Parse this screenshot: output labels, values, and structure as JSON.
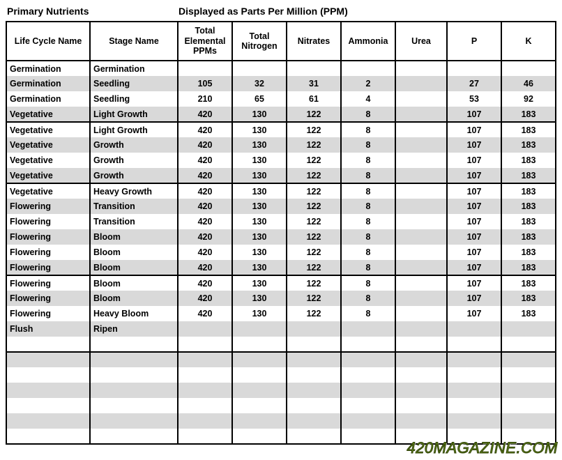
{
  "titles": {
    "left": "Primary Nutrients",
    "right": "Displayed as Parts Per Million (PPM)"
  },
  "columns": [
    "Life Cycle Name",
    "Stage Name",
    "Total Elemental PPMs",
    "Total Nitrogen",
    "Nitrates",
    "Ammonia",
    "Urea",
    "P",
    "K"
  ],
  "rows": [
    {
      "life": "Germination",
      "stage": "Germination",
      "vals": [
        "",
        "",
        "",
        "",
        "",
        "",
        ""
      ],
      "divider": true
    },
    {
      "life": "Germination",
      "stage": "Seedling",
      "vals": [
        "105",
        "32",
        "31",
        "2",
        "",
        "27",
        "46"
      ]
    },
    {
      "life": "Germination",
      "stage": "Seedling",
      "vals": [
        "210",
        "65",
        "61",
        "4",
        "",
        "53",
        "92"
      ]
    },
    {
      "life": "Vegetative",
      "stage": "Light Growth",
      "vals": [
        "420",
        "130",
        "122",
        "8",
        "",
        "107",
        "183"
      ]
    },
    {
      "life": "Vegetative",
      "stage": "Light Growth",
      "vals": [
        "420",
        "130",
        "122",
        "8",
        "",
        "107",
        "183"
      ],
      "divider": true
    },
    {
      "life": "Vegetative",
      "stage": "Growth",
      "vals": [
        "420",
        "130",
        "122",
        "8",
        "",
        "107",
        "183"
      ]
    },
    {
      "life": "Vegetative",
      "stage": "Growth",
      "vals": [
        "420",
        "130",
        "122",
        "8",
        "",
        "107",
        "183"
      ]
    },
    {
      "life": "Vegetative",
      "stage": "Growth",
      "vals": [
        "420",
        "130",
        "122",
        "8",
        "",
        "107",
        "183"
      ]
    },
    {
      "life": "Vegetative",
      "stage": "Heavy Growth",
      "vals": [
        "420",
        "130",
        "122",
        "8",
        "",
        "107",
        "183"
      ],
      "divider": true
    },
    {
      "life": "Flowering",
      "stage": "Transition",
      "vals": [
        "420",
        "130",
        "122",
        "8",
        "",
        "107",
        "183"
      ]
    },
    {
      "life": "Flowering",
      "stage": "Transition",
      "vals": [
        "420",
        "130",
        "122",
        "8",
        "",
        "107",
        "183"
      ]
    },
    {
      "life": "Flowering",
      "stage": "Bloom",
      "vals": [
        "420",
        "130",
        "122",
        "8",
        "",
        "107",
        "183"
      ]
    },
    {
      "life": "Flowering",
      "stage": "Bloom",
      "vals": [
        "420",
        "130",
        "122",
        "8",
        "",
        "107",
        "183"
      ]
    },
    {
      "life": "Flowering",
      "stage": "Bloom",
      "vals": [
        "420",
        "130",
        "122",
        "8",
        "",
        "107",
        "183"
      ]
    },
    {
      "life": "Flowering",
      "stage": "Bloom",
      "vals": [
        "420",
        "130",
        "122",
        "8",
        "",
        "107",
        "183"
      ],
      "divider": true
    },
    {
      "life": "Flowering",
      "stage": "Bloom",
      "vals": [
        "420",
        "130",
        "122",
        "8",
        "",
        "107",
        "183"
      ]
    },
    {
      "life": "Flowering",
      "stage": "Heavy Bloom",
      "vals": [
        "420",
        "130",
        "122",
        "8",
        "",
        "107",
        "183"
      ]
    },
    {
      "life": "Flush",
      "stage": "Ripen",
      "vals": [
        "",
        "",
        "",
        "",
        "",
        "",
        ""
      ]
    },
    {
      "life": "",
      "stage": "",
      "vals": [
        "",
        "",
        "",
        "",
        "",
        "",
        ""
      ]
    },
    {
      "life": "",
      "stage": "",
      "vals": [
        "",
        "",
        "",
        "",
        "",
        "",
        ""
      ],
      "divider": true
    },
    {
      "life": "",
      "stage": "",
      "vals": [
        "",
        "",
        "",
        "",
        "",
        "",
        ""
      ]
    },
    {
      "life": "",
      "stage": "",
      "vals": [
        "",
        "",
        "",
        "",
        "",
        "",
        ""
      ]
    },
    {
      "life": "",
      "stage": "",
      "vals": [
        "",
        "",
        "",
        "",
        "",
        "",
        ""
      ]
    },
    {
      "life": "",
      "stage": "",
      "vals": [
        "",
        "",
        "",
        "",
        "",
        "",
        ""
      ]
    },
    {
      "life": "",
      "stage": "",
      "vals": [
        "",
        "",
        "",
        "",
        "",
        "",
        ""
      ]
    }
  ],
  "colors": {
    "stripe": "#d9d9d9",
    "background": "#ffffff",
    "border": "#000000",
    "watermark_fill": "#6a8a1f",
    "watermark_stroke": "#2d4006"
  },
  "watermark": "420MAGAZINE.COM"
}
